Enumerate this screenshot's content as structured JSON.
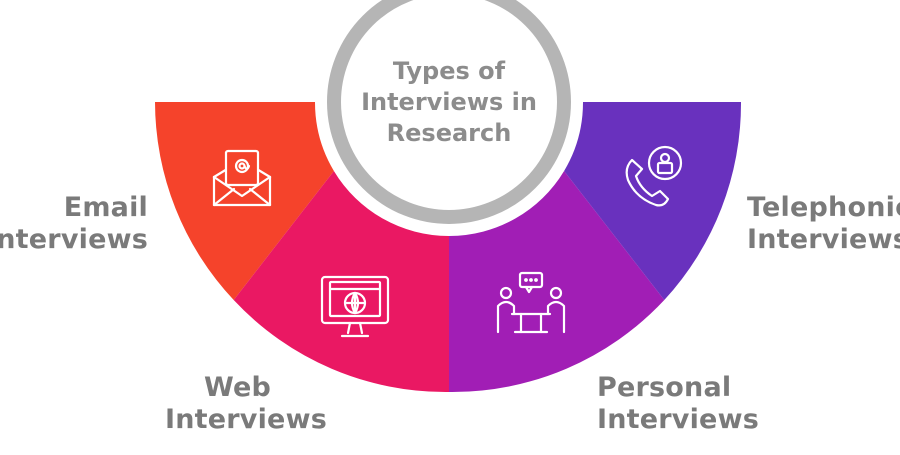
{
  "center": {
    "title_lines": [
      "Types of",
      "Interviews in",
      "Research"
    ]
  },
  "segments": [
    {
      "id": "email",
      "label_lines": [
        "Email",
        "Interviews"
      ],
      "color": "#F5432B",
      "icon": "email-envelope-icon"
    },
    {
      "id": "web",
      "label_lines": [
        "Web",
        "Interviews"
      ],
      "color": "#EA1863",
      "icon": "web-monitor-globe-icon"
    },
    {
      "id": "personal",
      "label_lines": [
        "Personal",
        "Interviews"
      ],
      "color": "#A11EB5",
      "icon": "face-to-face-meeting-icon"
    },
    {
      "id": "telephonic",
      "label_lines": [
        "Telephonic",
        "Interviews"
      ],
      "color": "#6931BE",
      "icon": "phone-contact-icon"
    }
  ],
  "ring_color": "#B5B5B5",
  "label_color": "#7A7A7A"
}
